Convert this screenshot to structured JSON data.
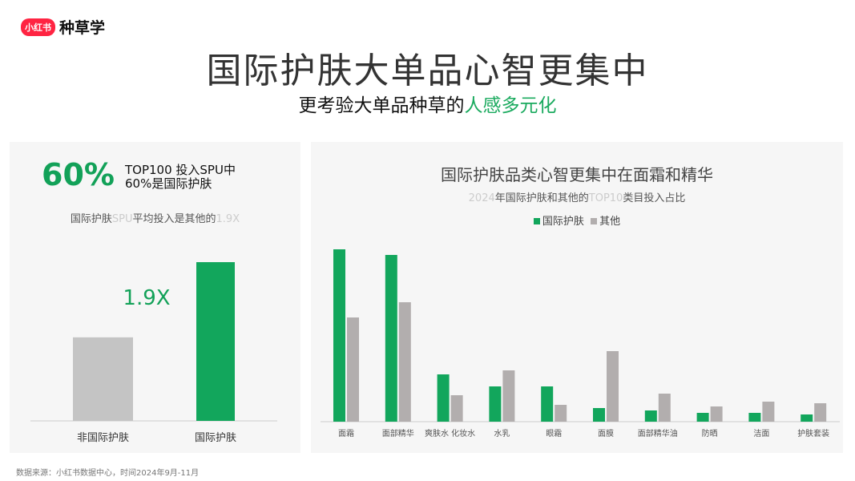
{
  "logo": {
    "badge": "小红书",
    "name": "种草学"
  },
  "title": "国际护肤大单品心智更集中",
  "subtitle": {
    "prefix": "更考验大单品种草的",
    "highlight": "人感多元化"
  },
  "left_panel": {
    "big_stat": "60%",
    "stat_line1": "TOP100 投入SPU中",
    "stat_line2": "60%是国际护肤",
    "note_a": "国际护肤",
    "note_b": "SPU",
    "note_c": "平均投入是其他的",
    "note_d": "1.9X"
  },
  "right_panel": {
    "title": "国际护肤品类心智更集中在面霜和精华",
    "sub_a": "2024",
    "sub_b": "年国际护肤和其他的",
    "sub_c": "TOP10",
    "sub_d": "类目投入占比"
  },
  "footer": "数据来源：小红书数据中心，时间2024年9月-11月",
  "colors": {
    "green": "#12a65c",
    "gray": "#b2aeae",
    "brand": "#ff2442"
  },
  "chart_data": [
    {
      "type": "bar",
      "categories": [
        "非国际护肤",
        "国际护肤"
      ],
      "values": [
        1,
        1.9
      ],
      "colors": [
        "#c4c4c4",
        "#12a65c"
      ],
      "annotation": "1.9X",
      "grid": false
    },
    {
      "type": "bar",
      "title": "国际护肤品类心智更集中在面霜和精华",
      "subtitle": "2024年国际护肤和其他的TOP10类目投入占比",
      "legend": "top",
      "grid": false,
      "categories": [
        "面霜",
        "面部精华",
        "爽肤水 化妆水",
        "水乳",
        "眼霜",
        "面膜",
        "面部精华油",
        "防晒",
        "洁面",
        "护肤套装"
      ],
      "series": [
        {
          "name": "国际护肤",
          "color": "#12a65c",
          "values": [
            21.5,
            20.8,
            5.9,
            4.4,
            4.4,
            1.7,
            1.4,
            1.1,
            1.1,
            0.9
          ]
        },
        {
          "name": "其他",
          "color": "#b2aeae",
          "values": [
            13,
            14.9,
            3.3,
            6.4,
            2.1,
            8.8,
            3.5,
            1.9,
            2.5,
            2.3
          ]
        }
      ]
    }
  ]
}
